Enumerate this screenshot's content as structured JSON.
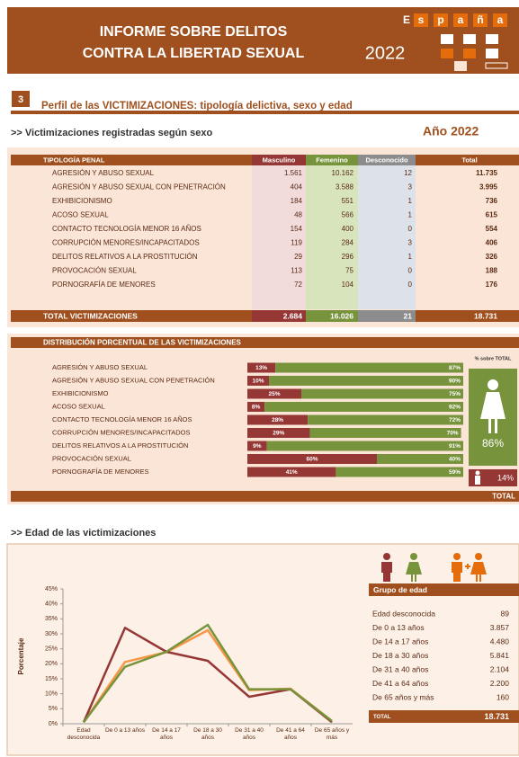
{
  "header": {
    "title_lines": [
      "INFORME SOBRE DELITOS",
      "CONTRA LA LIBERTAD SEXUAL"
    ],
    "year": "2022",
    "logo": [
      "E",
      "s",
      "p",
      "a",
      "ñ",
      "a"
    ]
  },
  "section": {
    "number": "3",
    "title": "Perfil de las VICTIMIZACIONES: tipología delictiva, sexo y edad"
  },
  "sex_table": {
    "subtitle": ">> Victimizaciones registradas según sexo",
    "year_label": "Año 2022",
    "columns": [
      "TIPOLOGÍA PENAL",
      "Masculino",
      "Femenino",
      "Desconocido",
      "Total"
    ],
    "rows": [
      [
        "AGRESIÓN Y ABUSO SEXUAL",
        "1.561",
        "10.162",
        "12",
        "11.735"
      ],
      [
        "AGRESIÓN Y ABUSO SEXUAL CON PENETRACIÓN",
        "404",
        "3.588",
        "3",
        "3.995"
      ],
      [
        "EXHIBICIONISMO",
        "184",
        "551",
        "1",
        "736"
      ],
      [
        "ACOSO SEXUAL",
        "48",
        "566",
        "1",
        "615"
      ],
      [
        "CONTACTO TECNOLOGÍA MENOR 16 AÑOS",
        "154",
        "400",
        "0",
        "554"
      ],
      [
        "CORRUPCIÓN MENORES/INCAPACITADOS",
        "119",
        "284",
        "3",
        "406"
      ],
      [
        "DELITOS RELATIVOS A LA PROSTITUCIÓN",
        "29",
        "296",
        "1",
        "326"
      ],
      [
        "PROVOCACIÓN SEXUAL",
        "113",
        "75",
        "0",
        "188"
      ],
      [
        "PORNOGRAFÍA DE MENORES",
        "72",
        "104",
        "0",
        "176"
      ]
    ],
    "total": [
      "TOTAL  VICTIMIZACIONES",
      "2.684",
      "16.026",
      "21",
      "18.731"
    ]
  },
  "distribution_side": {
    "label": "% sobre TOTAL",
    "female": "86%",
    "male": "14%",
    "total": "TOTAL"
  },
  "age_table": {
    "title": "Grupo de edad",
    "rows": [
      [
        "Edad desconocida",
        "89"
      ],
      [
        "De 0 a 13 años",
        "3.857"
      ],
      [
        "De 14 a 17 años",
        "4.480"
      ],
      [
        "De 18 a 30 años",
        "5.841"
      ],
      [
        "De 31 a 40 años",
        "2.104"
      ],
      [
        "De 41 a 64 años",
        "2.200"
      ],
      [
        "De 65 años y más",
        "160"
      ]
    ],
    "total": [
      "TOTAL",
      "18.731"
    ]
  },
  "chart_data": [
    {
      "type": "bar",
      "title": "DISTRIBUCIÓN PORCENTUAL DE LAS VICTIMIZACIONES",
      "orientation": "horizontal",
      "stacked": true,
      "categories": [
        "AGRESIÓN Y ABUSO SEXUAL",
        "AGRESIÓN Y ABUSO SEXUAL CON PENETRACIÓN",
        "EXHIBICIONISMO",
        "ACOSO SEXUAL",
        "CONTACTO TECNOLOGÍA MENOR 16 AÑOS",
        "CORRUPCIÓN MENORES/INCAPACITADOS",
        "DELITOS RELATIVOS A LA PROSTITUCIÓN",
        "PROVOCACIÓN SEXUAL",
        "PORNOGRAFÍA DE MENORES"
      ],
      "series": [
        {
          "color": "#953735",
          "values": [
            13,
            10,
            25,
            8,
            28,
            29,
            9,
            60,
            41
          ],
          "value_labels": [
            "13%",
            "10%",
            "25%",
            "8%",
            "28%",
            "29%",
            "9%",
            "60%",
            "41%"
          ]
        },
        {
          "color": "#77933c",
          "values": [
            87,
            90,
            75,
            92,
            72,
            70,
            91,
            40,
            59
          ],
          "value_labels": [
            "87%",
            "90%",
            "75%",
            "92%",
            "72%",
            "70%",
            "91%",
            "40%",
            "59%"
          ]
        }
      ],
      "xlim": [
        0,
        100
      ]
    },
    {
      "type": "line",
      "title": ">> Edad de las victimizaciones",
      "y_label": "Porcentaje",
      "categories": [
        "Edad desconocida",
        "De 0 a 13 años",
        "De 14 a 17 años",
        "De 18 a 30 años",
        "De 31 a 40 años",
        "De 41 a 64 años",
        "De 65 años y más"
      ],
      "series": [
        {
          "color": "#f79646",
          "values": [
            0.5,
            20.6,
            23.9,
            31.2,
            11.2,
            11.7,
            0.9
          ]
        },
        {
          "color": "#953735",
          "values": [
            0.5,
            32,
            24,
            21,
            9,
            11.5,
            0.5
          ]
        },
        {
          "color": "#77933c",
          "values": [
            0.5,
            19,
            24,
            33,
            11.5,
            11.5,
            0.9
          ]
        }
      ],
      "ylim": [
        0,
        45
      ],
      "yticks": [
        {
          "value": 0,
          "label": "0%"
        },
        {
          "value": 5,
          "label": "5%"
        },
        {
          "value": 10,
          "label": "10%"
        },
        {
          "value": 15,
          "label": "15%"
        },
        {
          "value": 20,
          "label": "20%"
        },
        {
          "value": 25,
          "label": "25%"
        },
        {
          "value": 30,
          "label": "30%"
        },
        {
          "value": 35,
          "label": "35%"
        },
        {
          "value": 40,
          "label": "40%"
        },
        {
          "value": 45,
          "label": "45%"
        }
      ],
      "grid": false
    }
  ]
}
